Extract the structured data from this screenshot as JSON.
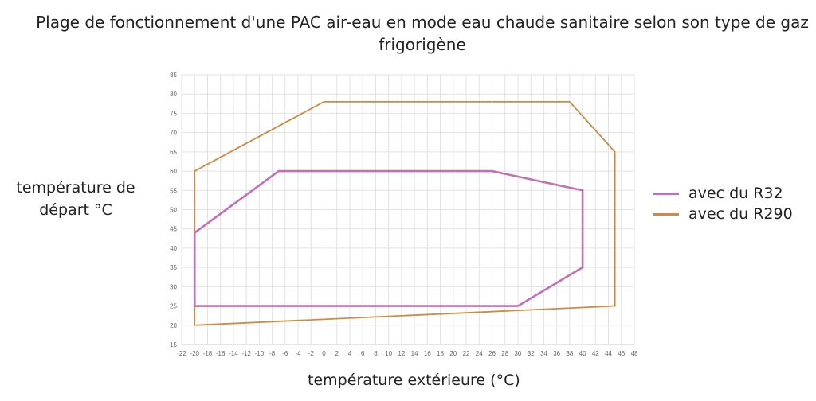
{
  "chart_data": {
    "type": "line",
    "title": "Plage de fonctionnement d'une PAC air-eau en mode eau chaude sanitaire selon son type de gaz frigorigène",
    "xlabel": "température extérieure (°C)",
    "ylabel": "température de départ °C",
    "xlim": [
      -22,
      48
    ],
    "ylim": [
      15,
      85
    ],
    "xticks": [
      -22,
      -20,
      -18,
      -16,
      -14,
      -12,
      -10,
      -8,
      -6,
      -4,
      -2,
      0,
      2,
      4,
      6,
      8,
      10,
      12,
      14,
      16,
      18,
      20,
      22,
      24,
      26,
      28,
      30,
      32,
      34,
      36,
      38,
      40,
      42,
      44,
      46,
      48
    ],
    "yticks": [
      15,
      20,
      25,
      30,
      35,
      40,
      45,
      50,
      55,
      60,
      65,
      70,
      75,
      80,
      85
    ],
    "grid": true,
    "legend_position": "right",
    "series": [
      {
        "name": "avec du R32",
        "color": "#c26fb8",
        "x": [
          -20,
          -20,
          -7,
          26,
          40,
          40,
          30,
          -20
        ],
        "y": [
          25,
          44,
          60,
          60,
          55,
          35,
          25,
          25
        ]
      },
      {
        "name": "avec du R290",
        "color": "#d08b43",
        "x": [
          -20,
          -20,
          0,
          38,
          45,
          45,
          -20
        ],
        "y": [
          20,
          60,
          78,
          78,
          65,
          25,
          20
        ]
      }
    ]
  }
}
